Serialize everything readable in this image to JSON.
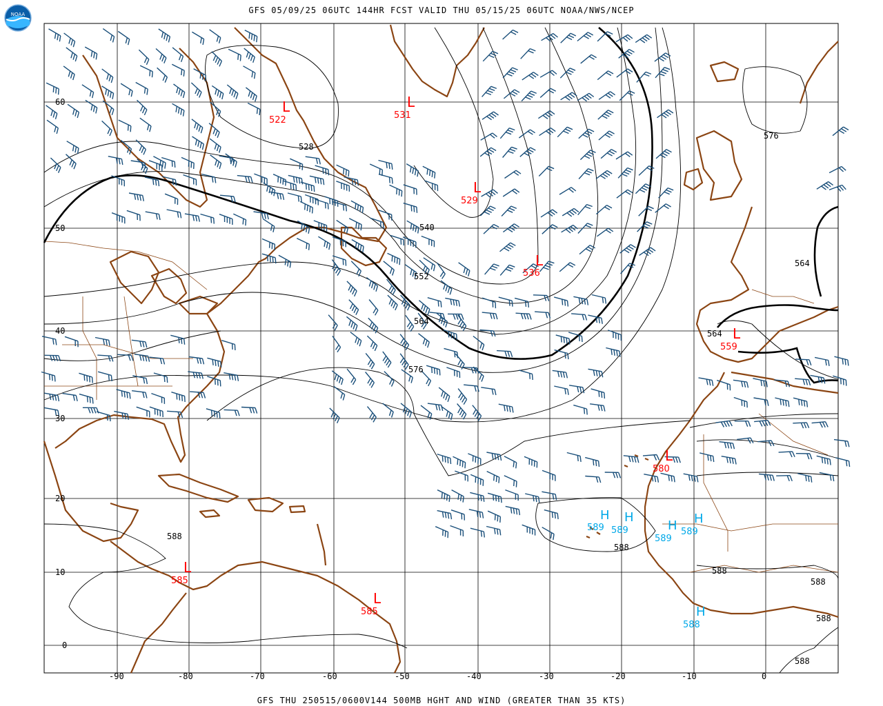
{
  "title_top": "GFS 05/09/25 06UTC 144HR FCST VALID THU 05/15/25 06UTC NOAA/NWS/NCEP",
  "title_bottom": "GFS THU 250515/0600V144 500MB HGHT AND WIND (GREATER THAN 35 KTS)",
  "logo_text": "NOAA",
  "colors": {
    "coast": "#8b4513",
    "border": "#8b4513",
    "contour": "#000000",
    "barb": "#1a4f7a",
    "low": "#ff0000",
    "high": "#00a8e8",
    "logo_outer": "#0a5ea8",
    "logo_inner": "#38b6ff"
  },
  "axes": {
    "lon_labels": [
      "-90",
      "-80",
      "-70",
      "-60",
      "-50",
      "-40",
      "-30",
      "-20",
      "-10",
      "0"
    ],
    "lat_labels": [
      "60",
      "50",
      "40",
      "30",
      "20",
      "10",
      "0"
    ]
  },
  "lows": [
    {
      "symbol": "L",
      "value": "522"
    },
    {
      "symbol": "L",
      "value": "531"
    },
    {
      "symbol": "L",
      "value": "529"
    },
    {
      "symbol": "L",
      "value": "536"
    },
    {
      "symbol": "L",
      "value": "559"
    },
    {
      "symbol": "L",
      "value": "580"
    },
    {
      "symbol": "L",
      "value": "585"
    },
    {
      "symbol": "L",
      "value": "585"
    }
  ],
  "highs": [
    {
      "symbol": "H",
      "value": "589"
    },
    {
      "symbol": "H",
      "value": "589"
    },
    {
      "symbol": "H",
      "value": "589"
    },
    {
      "symbol": "H",
      "value": "589"
    },
    {
      "symbol": "H",
      "value": "588"
    }
  ],
  "contour_labels": [
    "528",
    "540",
    "552",
    "564",
    "576",
    "576",
    "564",
    "564",
    "588",
    "588",
    "588",
    "588",
    "588",
    "588"
  ]
}
